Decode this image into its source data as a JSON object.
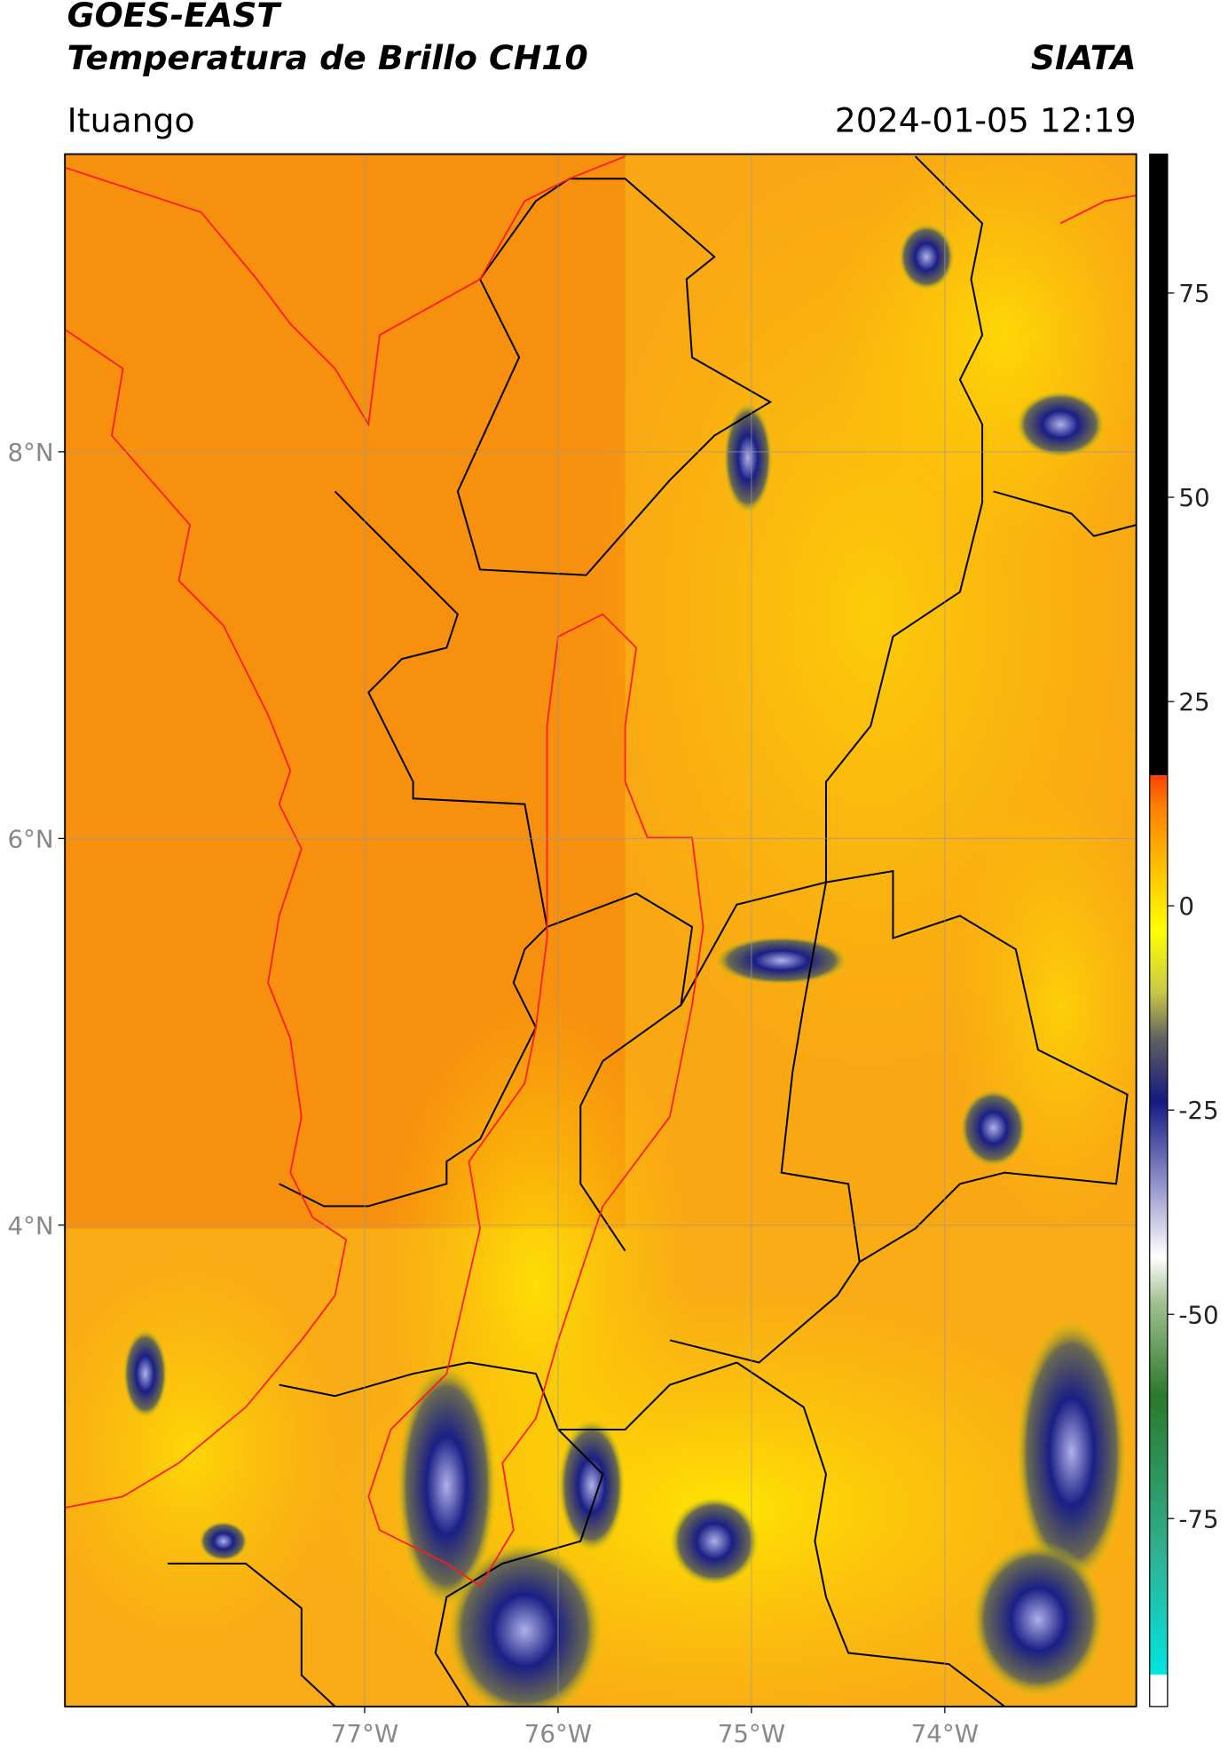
{
  "header": {
    "title": "GOES-EAST",
    "subtitle": "Temperatura de Brillo CH10",
    "brand": "SIATA",
    "region": "Ituango",
    "datetime": "2024-01-05 12:19"
  },
  "map": {
    "lon_range": [
      -78.55,
      -73.01
    ],
    "lat_range": [
      1.51,
      9.54
    ],
    "lon_ticks": [
      {
        "value": -77,
        "label": "77°W"
      },
      {
        "value": -76,
        "label": "76°W"
      },
      {
        "value": -75,
        "label": "75°W"
      },
      {
        "value": -74,
        "label": "74°W"
      }
    ],
    "lat_ticks": [
      {
        "value": 8,
        "label": "8°N"
      },
      {
        "value": 6,
        "label": "6°N"
      },
      {
        "value": 4,
        "label": "4°N"
      }
    ]
  },
  "colorbar": {
    "range": [
      -98,
      92
    ],
    "ticks": [
      75,
      50,
      25,
      0,
      -25,
      -50,
      -75
    ]
  }
}
